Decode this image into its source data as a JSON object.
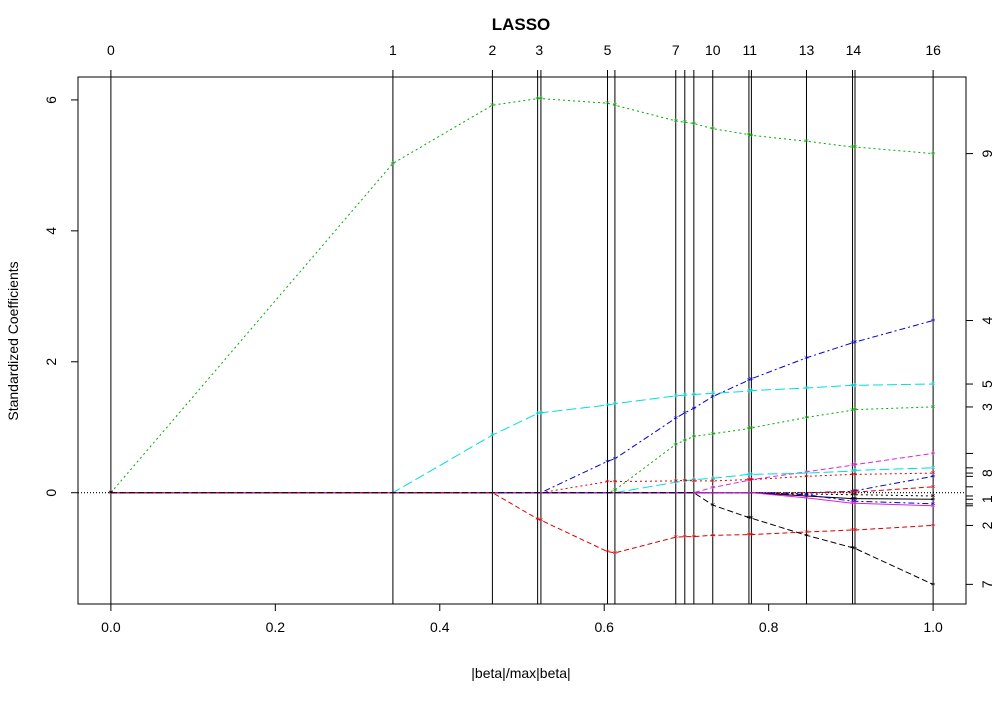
{
  "chart_data": {
    "type": "line",
    "title": "LASSO",
    "xlabel": "|beta|/max|beta|",
    "ylabel": "Standardized Coefficients",
    "xlim": [
      -0.04,
      1.04
    ],
    "ylim": [
      -1.7,
      6.35
    ],
    "x_ticks": [
      "0.0",
      "0.2",
      "0.4",
      "0.6",
      "0.8",
      "1.0"
    ],
    "x_tick_values": [
      0,
      0.2,
      0.4,
      0.6,
      0.8,
      1.0
    ],
    "y_ticks": [
      "0",
      "2",
      "4",
      "6"
    ],
    "y_tick_values": [
      0,
      2,
      4,
      6
    ],
    "grid": false,
    "legend": "none",
    "steps": {
      "x": [
        0,
        0.343,
        0.464,
        0.519,
        0.523,
        0.604,
        0.613,
        0.687,
        0.698,
        0.709,
        0.732,
        0.776,
        0.779,
        0.846,
        0.902,
        0.905,
        1.0
      ],
      "top_labels": [
        "0",
        "1",
        "2",
        "3",
        "5",
        "7",
        "10",
        "11",
        "13",
        "14",
        "16"
      ],
      "top_label_x": [
        0,
        0.343,
        0.464,
        0.521,
        0.604,
        0.687,
        0.732,
        0.777,
        0.846,
        0.903,
        1.0
      ]
    },
    "right_axis_labels": [
      {
        "label": "9",
        "value": 5.18
      },
      {
        "label": "4",
        "value": 2.63
      },
      {
        "label": "5",
        "value": 1.66
      },
      {
        "label": "3",
        "value": 1.31
      },
      {
        "label": "8",
        "value": 0.3
      },
      {
        "label": "1",
        "value": -0.1
      },
      {
        "label": "2",
        "value": -0.5
      },
      {
        "label": "7",
        "value": -1.4
      }
    ],
    "right_axis_ticks": [
      5.18,
      2.63,
      1.66,
      1.31,
      0.6,
      0.38,
      0.3,
      0.25,
      0.09,
      -0.05,
      -0.1,
      -0.17,
      -0.2,
      -0.5,
      -1.4
    ],
    "series": [
      {
        "color": "#00aa00",
        "dash": "2,3",
        "values": [
          0,
          5.03,
          5.92,
          6.02,
          6.02,
          5.95,
          5.92,
          5.68,
          5.66,
          5.64,
          5.56,
          5.47,
          5.46,
          5.37,
          5.28,
          5.28,
          5.18
        ]
      },
      {
        "color": "#0000cc",
        "dash": "6,3,2,3",
        "values": [
          0,
          0,
          0,
          0,
          0,
          0.48,
          0.52,
          1.14,
          1.22,
          1.29,
          1.47,
          1.72,
          1.74,
          2.06,
          2.29,
          2.3,
          2.63
        ]
      },
      {
        "color": "#00dddd",
        "dash": "10,4",
        "values": [
          0,
          0,
          0.88,
          1.21,
          1.22,
          1.34,
          1.36,
          1.48,
          1.49,
          1.5,
          1.52,
          1.55,
          1.56,
          1.6,
          1.64,
          1.64,
          1.66
        ]
      },
      {
        "color": "#00aa00",
        "dash": "2,3",
        "values": [
          0,
          0,
          0,
          0,
          0,
          0,
          0.04,
          0.74,
          0.8,
          0.86,
          0.9,
          0.98,
          0.99,
          1.15,
          1.26,
          1.27,
          1.31
        ]
      },
      {
        "color": "#dd22dd",
        "dash": "5,3",
        "values": [
          0,
          0,
          0,
          0,
          0,
          0,
          0,
          0,
          0,
          0,
          0.08,
          0.19,
          0.2,
          0.32,
          0.42,
          0.43,
          0.6
        ]
      },
      {
        "color": "#00dddd",
        "dash": "10,4",
        "values": [
          0,
          0,
          0,
          0,
          0,
          0,
          0,
          0.16,
          0.18,
          0.2,
          0.22,
          0.28,
          0.28,
          0.3,
          0.33,
          0.34,
          0.38
        ]
      },
      {
        "color": "#dd0000",
        "dash": "2,3",
        "values": [
          0,
          0,
          0,
          0,
          0,
          0.17,
          0.17,
          0.18,
          0.19,
          0.18,
          0.18,
          0.2,
          0.2,
          0.25,
          0.28,
          0.28,
          0.3
        ]
      },
      {
        "color": "#0000cc",
        "dash": "6,3,2,3",
        "values": [
          0,
          0,
          0,
          0,
          0,
          0,
          0,
          0,
          0,
          0,
          0,
          0,
          0,
          0,
          0.02,
          0.03,
          0.25
        ]
      },
      {
        "color": "#dd0000",
        "dash": "5,3",
        "values": [
          0,
          0,
          0,
          0,
          0,
          0,
          0,
          0,
          0,
          0,
          0,
          0,
          0,
          0,
          0.01,
          0.01,
          0.09
        ]
      },
      {
        "color": "#000000",
        "dash": "2,3",
        "values": [
          0,
          0,
          0,
          0,
          0,
          0,
          0,
          0,
          0,
          0,
          0,
          0,
          0,
          -0.02,
          -0.03,
          -0.03,
          -0.05
        ]
      },
      {
        "color": "#000000",
        "dash": "",
        "values": [
          0,
          0,
          0,
          0,
          0,
          0,
          0,
          0,
          0,
          0,
          0,
          0,
          0,
          -0.05,
          -0.09,
          -0.09,
          -0.1
        ]
      },
      {
        "color": "#0000cc",
        "dash": "6,3,2,3",
        "values": [
          0,
          0,
          0,
          0,
          0,
          0,
          0,
          0,
          0,
          0,
          0,
          0,
          0,
          -0.03,
          -0.13,
          -0.13,
          -0.17
        ]
      },
      {
        "color": "#dd22dd",
        "dash": "",
        "values": [
          0,
          0,
          0,
          0,
          0,
          0,
          0,
          0,
          0,
          0,
          0,
          0,
          0,
          -0.08,
          -0.16,
          -0.16,
          -0.2
        ]
      },
      {
        "color": "#dd0000",
        "dash": "5,3",
        "values": [
          0,
          0,
          0,
          -0.4,
          -0.42,
          -0.9,
          -0.92,
          -0.68,
          -0.67,
          -0.67,
          -0.65,
          -0.64,
          -0.64,
          -0.6,
          -0.57,
          -0.57,
          -0.5
        ]
      },
      {
        "color": "#000000",
        "dash": "6,3",
        "values": [
          0,
          0,
          0,
          0,
          0,
          0,
          0,
          0,
          0,
          0,
          -0.19,
          -0.38,
          -0.39,
          -0.65,
          -0.84,
          -0.85,
          -1.4
        ]
      }
    ]
  }
}
